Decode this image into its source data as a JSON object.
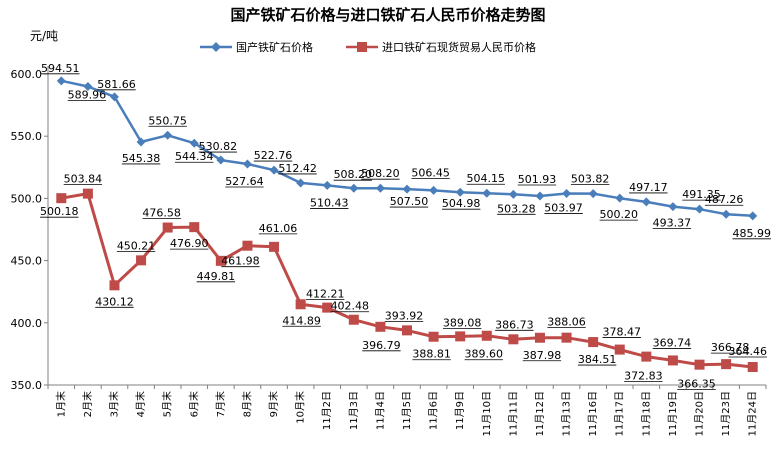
{
  "chart_data": {
    "type": "line",
    "title": "国产铁矿石价格与进口铁矿石人民币价格走势图",
    "ylabel": "元/吨",
    "xlabel": "",
    "ylim": [
      350,
      600
    ],
    "yticks": [
      "350.0",
      "400.0",
      "450.0",
      "500.0",
      "550.0",
      "600.0"
    ],
    "legend_position": "top",
    "grid": false,
    "categories": [
      "1月末",
      "2月末",
      "3月末",
      "4月末",
      "5月末",
      "6月末",
      "7月末",
      "8月末",
      "9月末",
      "10月末",
      "11月2日",
      "11月3日",
      "11月4日",
      "11月5日",
      "11月6日",
      "11月9日",
      "11月10日",
      "11月11日",
      "11月12日",
      "11月13日",
      "11月16日",
      "11月17日",
      "11月18日",
      "11月19日",
      "11月20日",
      "11月23日",
      "11月24日"
    ],
    "series": [
      {
        "name": "国产铁矿石价格",
        "color": "#4a7ebb",
        "marker": "diamond",
        "values": [
          594.51,
          589.96,
          581.66,
          545.38,
          550.75,
          544.34,
          530.82,
          527.64,
          522.76,
          512.42,
          510.43,
          508.2,
          508.2,
          507.5,
          506.45,
          504.98,
          504.15,
          503.28,
          501.93,
          503.97,
          503.82,
          500.2,
          497.17,
          493.37,
          491.35,
          487.26,
          485.99
        ],
        "labels": [
          "594.51",
          "589.96",
          "581.66",
          "545.38",
          "550.75",
          "544.34",
          "530.82",
          "527.64",
          "522.76",
          "512.42",
          "510.43",
          "508.20",
          "508.20",
          "507.50",
          "506.45",
          "504.98",
          "504.15",
          "503.28",
          "501.93",
          "503.97",
          "503.82",
          "500.20",
          "497.17",
          "493.37",
          "491.35",
          "487.26",
          "485.99"
        ]
      },
      {
        "name": "进口铁矿石现货贸易人民币价格",
        "color": "#be4b48",
        "marker": "square",
        "values": [
          500.18,
          503.84,
          430.12,
          450.21,
          476.58,
          476.9,
          449.81,
          461.98,
          461.06,
          414.89,
          412.21,
          402.48,
          396.79,
          393.92,
          388.81,
          389.08,
          389.6,
          386.73,
          387.98,
          388.06,
          384.51,
          378.47,
          372.83,
          369.74,
          366.35,
          366.78,
          364.46
        ],
        "labels": [
          "500.18",
          "503.84",
          "430.12",
          "450.21",
          "476.58",
          "476.90",
          "449.81",
          "461.98",
          "461.06",
          "414.89",
          "412.21",
          "402.48",
          "396.79",
          "393.92",
          "388.81",
          "389.08",
          "389.60",
          "386.73",
          "387.98",
          "388.06",
          "384.51",
          "378.47",
          "372.83",
          "369.74",
          "366.35",
          "366.78",
          "364.46"
        ]
      }
    ]
  }
}
